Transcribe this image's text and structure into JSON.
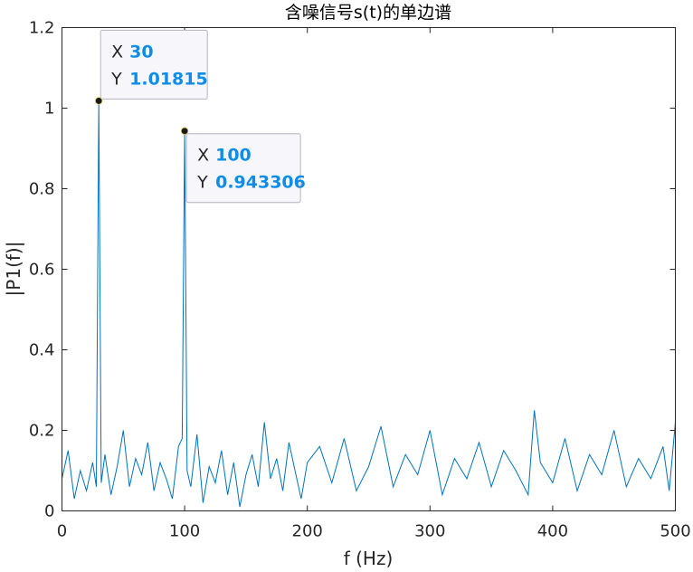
{
  "chart_data": {
    "type": "line",
    "title": "含噪信号s(t)的单边谱",
    "xlabel": "f (Hz)",
    "ylabel": "|P1(f)|",
    "xlim": [
      0,
      500
    ],
    "ylim": [
      0,
      1.2
    ],
    "xticks": [
      "0",
      "100",
      "200",
      "300",
      "400",
      "500"
    ],
    "yticks": [
      "0",
      "0.2",
      "0.4",
      "0.6",
      "0.8",
      "1",
      "1.2"
    ],
    "grid": false,
    "line_color": "#0072bd",
    "series": [
      {
        "x": [
          0,
          5,
          10,
          15,
          20,
          25,
          28,
          30,
          32,
          35,
          40,
          45,
          50,
          55,
          60,
          65,
          70,
          75,
          80,
          85,
          90,
          95,
          98,
          100,
          102,
          105,
          110,
          115,
          120,
          125,
          130,
          135,
          140,
          145,
          150,
          155,
          160,
          165,
          170,
          175,
          180,
          185,
          190,
          195,
          200,
          210,
          220,
          230,
          240,
          250,
          260,
          270,
          280,
          290,
          300,
          310,
          320,
          330,
          340,
          350,
          360,
          370,
          380,
          385,
          390,
          400,
          410,
          420,
          430,
          440,
          450,
          460,
          470,
          480,
          490,
          495,
          500
        ],
        "values": [
          0.08,
          0.15,
          0.03,
          0.1,
          0.05,
          0.12,
          0.06,
          1.01815,
          0.07,
          0.14,
          0.04,
          0.11,
          0.2,
          0.06,
          0.13,
          0.09,
          0.17,
          0.05,
          0.12,
          0.08,
          0.03,
          0.16,
          0.18,
          0.943306,
          0.1,
          0.06,
          0.19,
          0.02,
          0.11,
          0.07,
          0.15,
          0.04,
          0.12,
          0.01,
          0.09,
          0.14,
          0.06,
          0.22,
          0.08,
          0.13,
          0.05,
          0.17,
          0.1,
          0.03,
          0.12,
          0.16,
          0.07,
          0.18,
          0.05,
          0.11,
          0.21,
          0.06,
          0.14,
          0.09,
          0.2,
          0.04,
          0.13,
          0.08,
          0.17,
          0.06,
          0.15,
          0.1,
          0.04,
          0.25,
          0.12,
          0.07,
          0.18,
          0.05,
          0.14,
          0.09,
          0.2,
          0.06,
          0.13,
          0.08,
          0.16,
          0.05,
          0.22
        ]
      }
    ],
    "datatips": [
      {
        "x_key": "X",
        "x_value": "30",
        "y_key": "Y",
        "y_value": "1.01815",
        "x": 30,
        "y": 1.01815
      },
      {
        "x_key": "X",
        "x_value": "100",
        "y_key": "Y",
        "y_value": "0.943306",
        "x": 100,
        "y": 0.943306
      }
    ]
  }
}
